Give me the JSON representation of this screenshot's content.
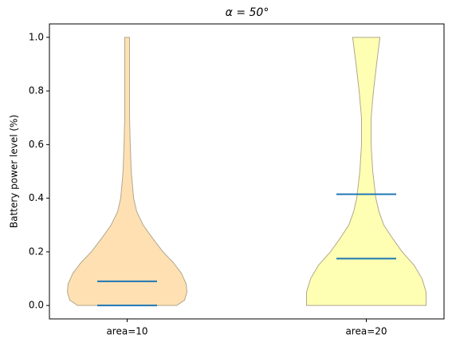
{
  "chart_data": {
    "type": "violin",
    "title": "α = 50°",
    "y_label": "Battery power level (%)",
    "categories": [
      "area=10",
      "area=20"
    ],
    "positions": [
      1,
      2
    ],
    "xlim": [
      0.675,
      2.325
    ],
    "ylim": [
      -0.05,
      1.05
    ],
    "yticks": [
      {
        "value": 0,
        "label": "0.0"
      },
      0.2,
      0.4,
      0.6,
      0.8,
      {
        "value": 1,
        "label": "1.0"
      }
    ],
    "line_color": "#1f77b4",
    "edge_color": "#b0a88c",
    "violins": [
      {
        "color": "#ffe0b3",
        "y": [
          0,
          0.02,
          0.05,
          0.08,
          0.12,
          0.16,
          0.2,
          0.25,
          0.3,
          0.35,
          0.4,
          0.5,
          0.6,
          0.7,
          0.8,
          0.9,
          0.95,
          1.0
        ],
        "width": [
          0.207,
          0.24,
          0.25,
          0.247,
          0.227,
          0.193,
          0.15,
          0.107,
          0.067,
          0.04,
          0.027,
          0.017,
          0.013,
          0.01,
          0.01,
          0.01,
          0.01,
          0.01
        ],
        "lines": [
          0,
          0.09
        ]
      },
      {
        "color": "#ffffb3",
        "y": [
          0,
          0.05,
          0.1,
          0.15,
          0.2,
          0.25,
          0.3,
          0.35,
          0.4,
          0.5,
          0.6,
          0.7,
          0.8,
          0.9,
          0.95,
          1.0
        ],
        "width": [
          0.25,
          0.25,
          0.233,
          0.2,
          0.15,
          0.11,
          0.073,
          0.053,
          0.04,
          0.027,
          0.02,
          0.02,
          0.03,
          0.043,
          0.05,
          0.057
        ],
        "lines": [
          0.175,
          0.415
        ]
      }
    ]
  }
}
